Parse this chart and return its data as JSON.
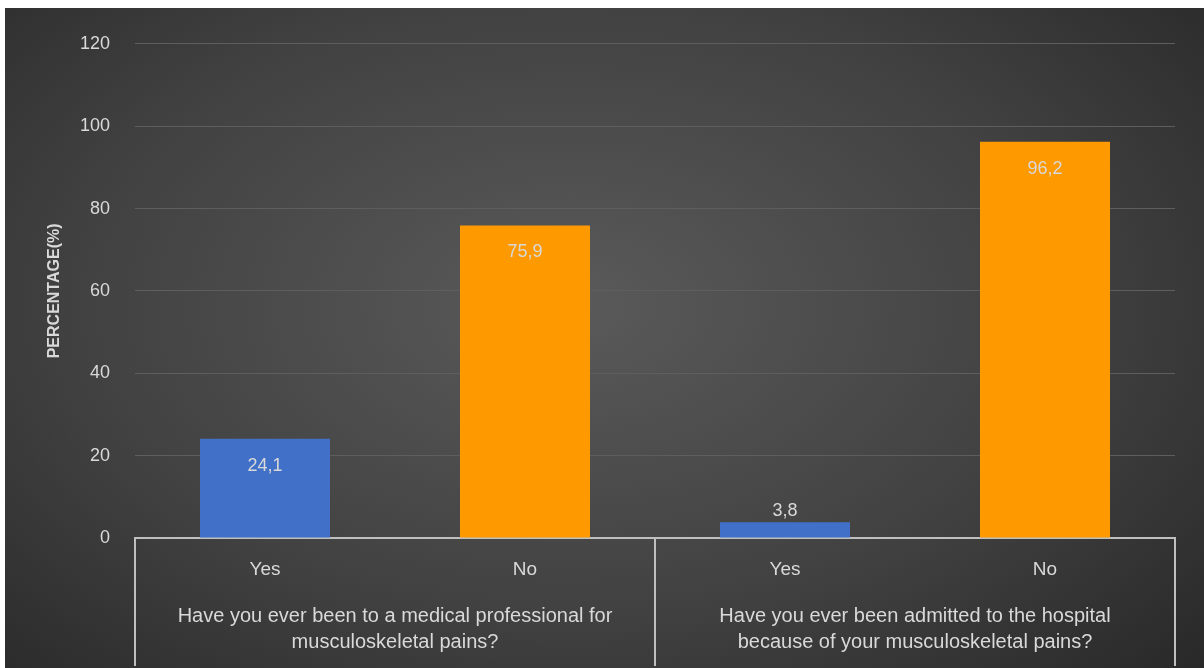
{
  "chart_data": {
    "type": "bar",
    "ylabel": "PERCENTAGE(%)",
    "categories": [
      "Yes",
      "No",
      "Yes",
      "No"
    ],
    "values": [
      24.1,
      75.9,
      3.8,
      96.2
    ],
    "colors": [
      "#4170c8",
      "#ff9900",
      "#4170c8",
      "#ff9900"
    ],
    "value_labels": [
      "24,1",
      "75,9",
      "3,8",
      "96,2"
    ],
    "ylim": [
      0,
      120
    ],
    "yticks": [
      0,
      20,
      40,
      60,
      80,
      100,
      120
    ],
    "grid": "y",
    "annotations": [
      "Have you ever been to a medical professional for musculoskeletal pains?",
      "Have you ever been admitted to the hospital because of your musculoskeletal pains?"
    ]
  }
}
